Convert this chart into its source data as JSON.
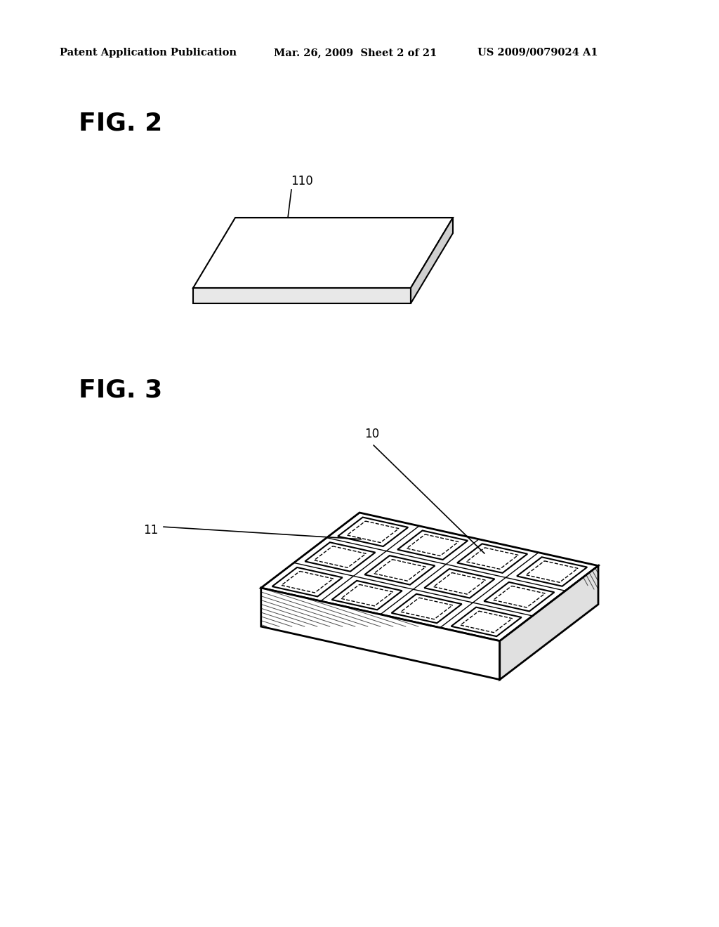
{
  "background_color": "#ffffff",
  "header_left": "Patent Application Publication",
  "header_mid": "Mar. 26, 2009  Sheet 2 of 21",
  "header_right": "US 2009/0079024 A1",
  "fig2_label": "FIG. 2",
  "fig3_label": "FIG. 3",
  "label_110": "110",
  "label_10": "10",
  "label_11": "11"
}
